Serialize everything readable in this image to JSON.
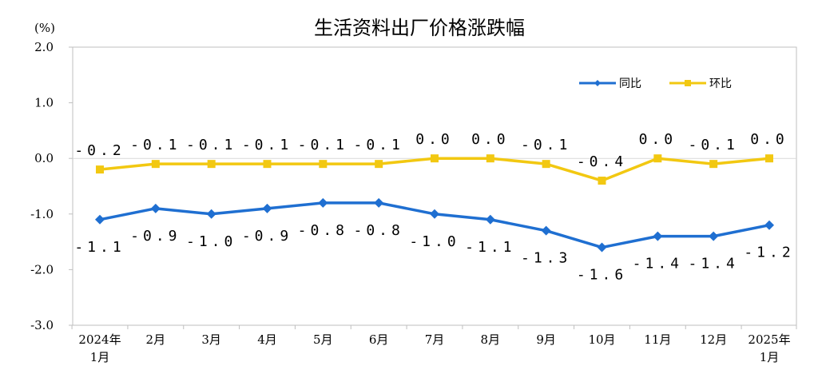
{
  "chart_data": {
    "type": "line",
    "title": "生活资料出厂价格涨跌幅",
    "unit": "(%)",
    "ylim": [
      -3.0,
      2.0
    ],
    "yticks": [
      "2.0",
      "1.0",
      "0.0",
      "-1.0",
      "-2.0",
      "-3.0"
    ],
    "categories": [
      [
        "2024年",
        "1月"
      ],
      [
        "2月"
      ],
      [
        "3月"
      ],
      [
        "4月"
      ],
      [
        "5月"
      ],
      [
        "6月"
      ],
      [
        "7月"
      ],
      [
        "8月"
      ],
      [
        "9月"
      ],
      [
        "10月"
      ],
      [
        "11月"
      ],
      [
        "12月"
      ],
      [
        "2025年",
        "1月"
      ]
    ],
    "series": [
      {
        "name": "同比",
        "color": "#1F6FD1",
        "marker": "diamond",
        "values": [
          -1.1,
          -0.9,
          -1.0,
          -0.9,
          -0.8,
          -0.8,
          -1.0,
          -1.1,
          -1.3,
          -1.6,
          -1.4,
          -1.4,
          -1.2
        ],
        "labels": [
          "-1.1",
          "-0.9",
          "-1.0",
          "-0.9",
          "-0.8",
          "-0.8",
          "-1.0",
          "-1.1",
          "-1.3",
          "-1.6",
          "-1.4",
          "-1.4",
          "-1.2"
        ]
      },
      {
        "name": "环比",
        "color": "#F2C811",
        "marker": "square",
        "values": [
          -0.2,
          -0.1,
          -0.1,
          -0.1,
          -0.1,
          -0.1,
          0.0,
          0.0,
          -0.1,
          -0.4,
          0.0,
          -0.1,
          0.0
        ],
        "labels": [
          "-0.2",
          "-0.1",
          "-0.1",
          "-0.1",
          "-0.1",
          "-0.1",
          "0.0",
          "0.0",
          "-0.1",
          "-0.4",
          "0.0",
          "-0.1",
          "0.0"
        ]
      }
    ],
    "grid": false,
    "legend": "top-right",
    "zero_line_color": "#D9D9D9",
    "axis_color": "#BFBFBF"
  }
}
